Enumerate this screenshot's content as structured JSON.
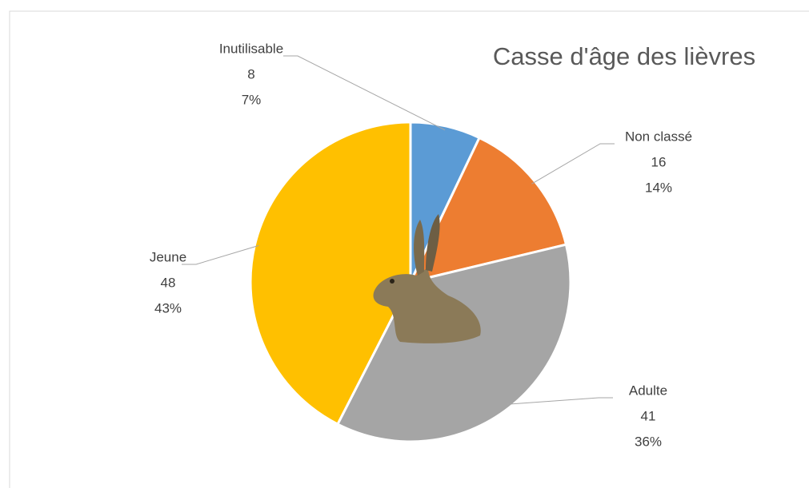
{
  "chart_data": {
    "type": "pie",
    "title": "Casse d'âge des lièvres",
    "categories": [
      "Inutilisable",
      "Non classé",
      "Adulte",
      "Jeune"
    ],
    "values": [
      8,
      16,
      41,
      48
    ],
    "percent_labels": [
      "7%",
      "14%",
      "36%",
      "43%"
    ],
    "colors": [
      "#5b9bd5",
      "#ed7d31",
      "#a5a5a5",
      "#ffc000"
    ]
  }
}
